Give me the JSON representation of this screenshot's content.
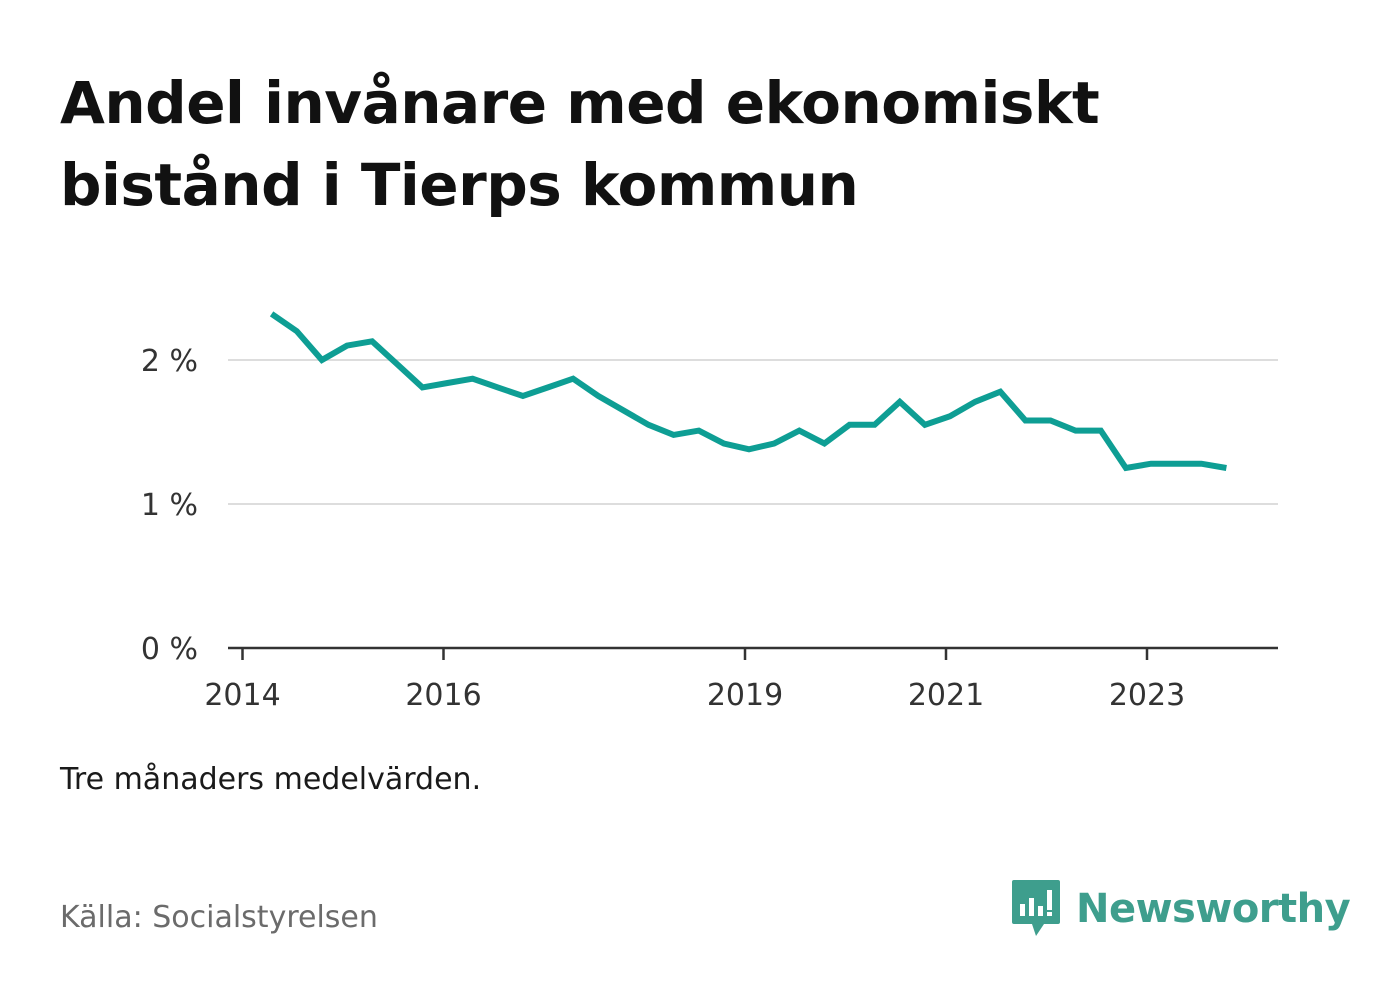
{
  "title": "Andel invånare med ekonomiskt bistånd i Tierps kommun",
  "note": "Tre månaders medelvärden.",
  "source": "Källa: Socialstyrelsen",
  "brand": {
    "name": "Newsworthy",
    "icon": "newsworthy-logo-icon",
    "color": "#3e9e8d"
  },
  "colors": {
    "line": "#0e9e94",
    "grid": "#dddddd",
    "axis": "#333333",
    "tick_label": "#333333"
  },
  "chart_data": {
    "type": "line",
    "title": "Andel invånare med ekonomiskt bistånd i Tierps kommun",
    "xlabel": "",
    "ylabel": "",
    "x_ticks": [
      "2014",
      "2016",
      "2019",
      "2021",
      "2023"
    ],
    "y_ticks": [
      "0 %",
      "1 %",
      "2 %"
    ],
    "xlim": [
      2014.0,
      2024.33
    ],
    "ylim": [
      0,
      2.6
    ],
    "grid": true,
    "legend": "none",
    "series": [
      {
        "x": [
          2014.29,
          2014.54,
          2014.79,
          2015.04,
          2015.29,
          2015.54,
          2015.79,
          2016.04,
          2016.29,
          2016.54,
          2016.79,
          2017.04,
          2017.29,
          2017.54,
          2017.79,
          2018.04,
          2018.29,
          2018.54,
          2018.79,
          2019.04,
          2019.29,
          2019.54,
          2019.79,
          2020.04,
          2020.29,
          2020.54,
          2020.79,
          2021.04,
          2021.29,
          2021.54,
          2021.79,
          2022.04,
          2022.29,
          2022.54,
          2022.79,
          2023.04,
          2023.29,
          2023.54,
          2023.79
        ],
        "values": [
          2.32,
          2.2,
          2.0,
          2.1,
          2.13,
          1.97,
          1.81,
          1.84,
          1.87,
          1.81,
          1.75,
          1.81,
          1.87,
          1.75,
          1.65,
          1.55,
          1.48,
          1.51,
          1.42,
          1.38,
          1.42,
          1.51,
          1.42,
          1.55,
          1.55,
          1.71,
          1.55,
          1.61,
          1.71,
          1.78,
          1.58,
          1.58,
          1.51,
          1.51,
          1.25,
          1.28,
          1.28,
          1.28,
          1.25
        ]
      }
    ]
  }
}
